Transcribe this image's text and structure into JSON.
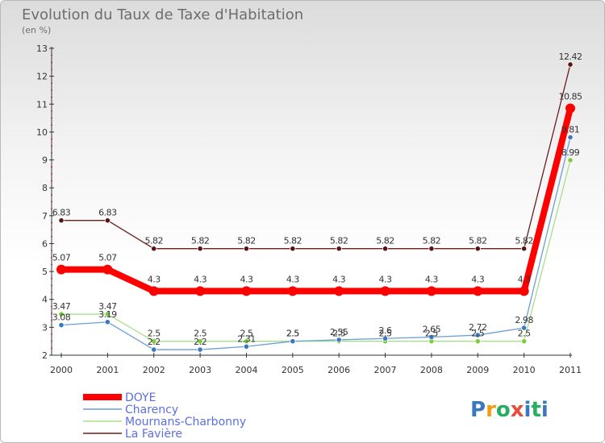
{
  "chart_data": {
    "type": "line",
    "title": "Evolution du Taux de Taxe d'Habitation",
    "subtitle": "(en %)",
    "categories": [
      "2000",
      "2001",
      "2002",
      "2003",
      "2004",
      "2005",
      "2006",
      "2007",
      "2008",
      "2009",
      "2010",
      "2011"
    ],
    "ylim": [
      2,
      13
    ],
    "yticks": [
      "2",
      "3",
      "4",
      "5",
      "6",
      "7",
      "8",
      "9",
      "10",
      "11",
      "12",
      "13"
    ],
    "grid": false,
    "legend_position": "bottom-left",
    "series": [
      {
        "name": "La Favière",
        "color": "#6b1e1e",
        "point_color": "#5a1414",
        "values": [
          6.83,
          6.83,
          5.82,
          5.82,
          5.82,
          5.82,
          5.82,
          5.82,
          5.82,
          5.82,
          5.82,
          12.42
        ],
        "labels": [
          "6.83",
          "6.83",
          "5.82",
          "5.82",
          "5.82",
          "5.82",
          "5.82",
          "5.82",
          "5.82",
          "5.82",
          "5.82",
          "12.42"
        ]
      },
      {
        "name": "Mournans-Charbonny",
        "color": "#a6e08a",
        "point_color": "#7ccc3c",
        "values": [
          3.47,
          3.47,
          2.5,
          2.5,
          2.5,
          2.5,
          2.5,
          2.5,
          2.5,
          2.5,
          2.5,
          8.99
        ],
        "labels": [
          "3.47",
          "3.47",
          "2.5",
          "2.5",
          "2.5",
          "2.5",
          "2.5",
          "2.5",
          "2.5",
          "2.5",
          "2.5",
          "8.99"
        ]
      },
      {
        "name": "Charency",
        "color": "#6a9fd6",
        "point_color": "#3a78c0",
        "values": [
          3.08,
          3.19,
          2.2,
          2.2,
          2.31,
          2.5,
          2.55,
          2.6,
          2.65,
          2.72,
          2.98,
          9.81
        ],
        "labels": [
          "3.08",
          "3.19",
          "2.2",
          "2.2",
          "2.31",
          "2.5",
          "2.55",
          "2.6",
          "2.65",
          "2.72",
          "2.98",
          "9.81"
        ]
      },
      {
        "name": "DOYE",
        "color": "#ff0000",
        "point_color": "#ff0000",
        "values": [
          5.07,
          5.07,
          4.3,
          4.3,
          4.3,
          4.3,
          4.3,
          4.3,
          4.3,
          4.3,
          4.3,
          10.85
        ],
        "labels": [
          "5.07",
          "5.07",
          "4.3",
          "4.3",
          "4.3",
          "4.3",
          "4.3",
          "4.3",
          "4.3",
          "4.3",
          "4.3",
          "10.85"
        ]
      }
    ],
    "legend": [
      {
        "name": "DOYE",
        "color": "#ff0000"
      },
      {
        "name": "Charency",
        "color": "#6a9fd6"
      },
      {
        "name": "Mournans-Charbonny",
        "color": "#a6e08a"
      },
      {
        "name": "La Favière",
        "color": "#6b1e1e"
      }
    ]
  },
  "logo": {
    "text": "Proxiti",
    "letters": [
      "P",
      "r",
      "o",
      "x",
      "i",
      "t",
      "i"
    ],
    "colors": [
      "#3a78c0",
      "#f39c12",
      "#27ae60",
      "#e74c3c",
      "#3a78c0",
      "#27ae60",
      "#3a78c0"
    ]
  }
}
